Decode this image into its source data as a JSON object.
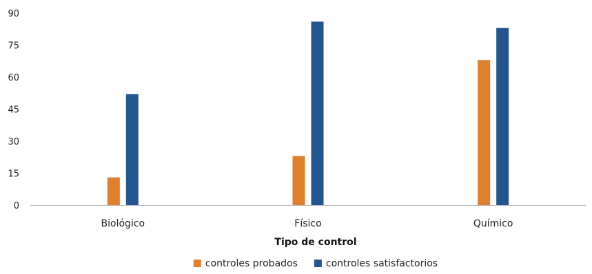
{
  "chart_data": {
    "type": "bar",
    "title": "",
    "xlabel": "Tipo de control",
    "ylabel": "",
    "ylim": [
      0,
      90
    ],
    "yticks": [
      0,
      15,
      30,
      45,
      60,
      75,
      90
    ],
    "categories": [
      "Biológico",
      "Físico",
      "Químico"
    ],
    "series": [
      {
        "name": "controles probados",
        "color": "#e07f2e",
        "values": [
          13,
          23,
          68
        ]
      },
      {
        "name": "controles satisfactorios",
        "color": "#235691",
        "values": [
          52,
          86,
          83
        ]
      }
    ],
    "grid": false,
    "legend_position": "bottom"
  }
}
